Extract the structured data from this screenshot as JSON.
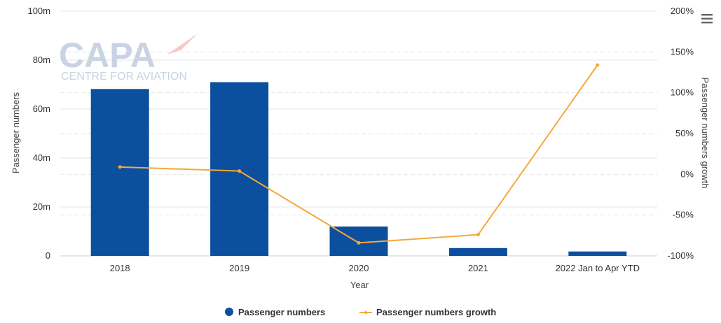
{
  "menu": {
    "icon": "hamburger-icon"
  },
  "watermark": {
    "name": "CAPA",
    "subtitle": "CENTRE FOR AVIATION"
  },
  "chart_data": {
    "type": "bar",
    "categories": [
      "2018",
      "2019",
      "2020",
      "2021",
      "2022 Jan to Apr YTD"
    ],
    "xlabel": "Year",
    "ylabel": "Passenger numbers",
    "y2label": "Passenger numbers growth",
    "ylim": [
      0,
      100
    ],
    "y2lim": [
      -100,
      200
    ],
    "yticks": [
      0,
      20,
      40,
      60,
      80,
      100
    ],
    "ytick_labels": [
      "0",
      "20m",
      "40m",
      "60m",
      "80m",
      "100m"
    ],
    "y2ticks": [
      -100,
      -50,
      0,
      50,
      100,
      150,
      200
    ],
    "y2tick_labels": [
      "-100%",
      "-50%",
      "0%",
      "50%",
      "100%",
      "150%",
      "200%"
    ],
    "grid": true,
    "legend_position": "bottom-center",
    "series": [
      {
        "name": "Passenger numbers",
        "type": "bar",
        "axis": "left",
        "color": "#0b4f9e",
        "values": [
          68.2,
          71.0,
          12.0,
          3.2,
          1.8
        ]
      },
      {
        "name": "Passenger numbers growth",
        "type": "line",
        "axis": "right",
        "color": "#f5a83c",
        "values": [
          9,
          4,
          -84,
          -74,
          134
        ]
      }
    ]
  }
}
